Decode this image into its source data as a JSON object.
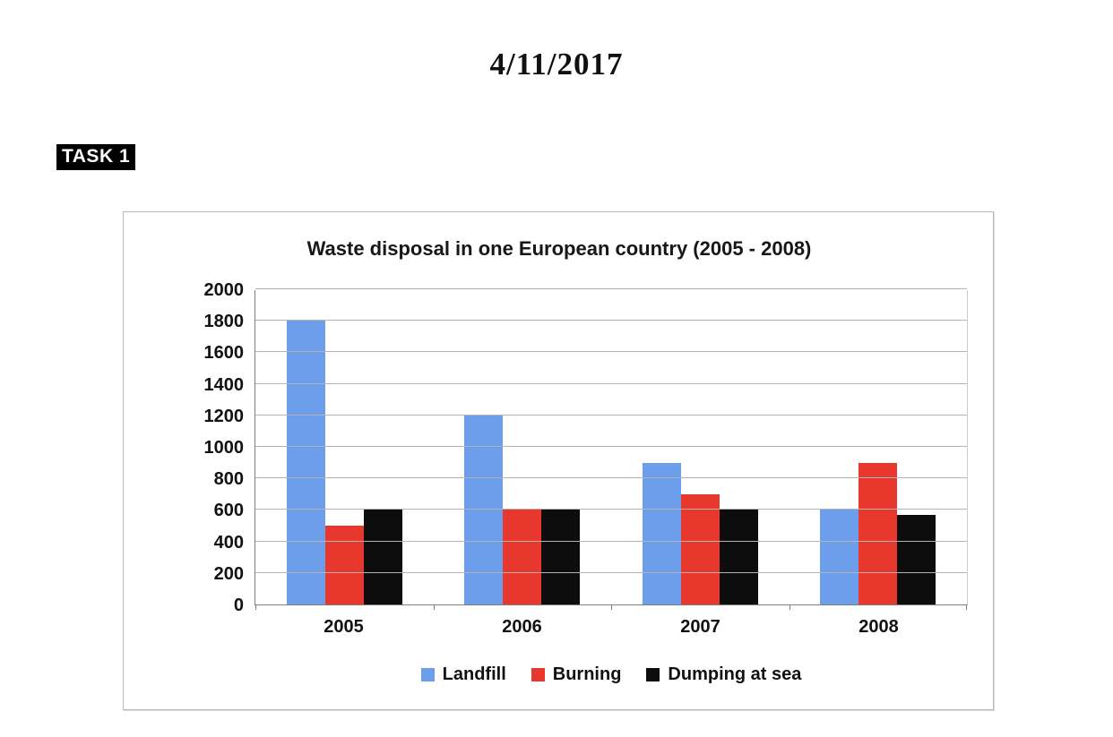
{
  "page": {
    "date": "4/11/2017",
    "task_label": "TASK 1"
  },
  "chart_data": {
    "type": "bar",
    "title": "Waste disposal in one European country (2005 - 2008)",
    "categories": [
      "2005",
      "2006",
      "2007",
      "2008"
    ],
    "series": [
      {
        "name": "Landfill",
        "color": "#6D9EEB",
        "values": [
          1800,
          1200,
          900,
          600
        ]
      },
      {
        "name": "Burning",
        "color": "#E8382D",
        "values": [
          500,
          600,
          700,
          900
        ]
      },
      {
        "name": "Dumping at sea",
        "color": "#0D0D0D",
        "values": [
          600,
          610,
          600,
          570
        ]
      }
    ],
    "ylim": [
      0,
      2000
    ],
    "ytick_interval": 200,
    "yticks": [
      0,
      200,
      400,
      600,
      800,
      1000,
      1200,
      1400,
      1600,
      1800,
      2000
    ],
    "grid": true,
    "legend_position": "bottom",
    "colors": {
      "gridline": "#b3b3b3",
      "axis": "#7f7f7f",
      "text": "#111111"
    }
  }
}
